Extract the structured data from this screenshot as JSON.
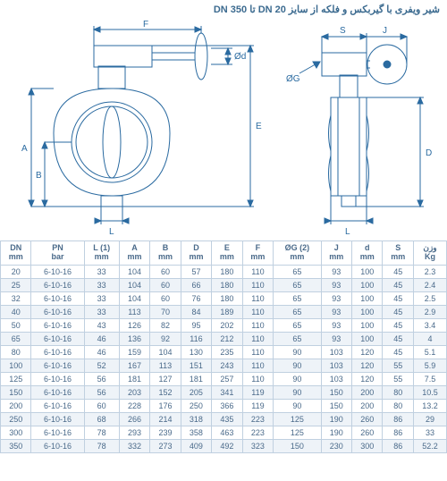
{
  "title": "شیر ویفری با گیربکس و فلکه از سایز DN 20 تا DN 350",
  "title_color": "#3b6a8f",
  "diagram": {
    "stroke": "#2a6aa0",
    "stroke_width": 1,
    "labels": [
      "F",
      "Ød",
      "E",
      "A",
      "B",
      "L",
      "S",
      "J",
      "ØG",
      "D"
    ]
  },
  "table": {
    "header_color": "#4a6a8a",
    "row_alt_color": "#eef3f8",
    "border_color": "#c0d0e0",
    "columns": [
      "DN\nmm",
      "PN\nbar",
      "L (1)\nmm",
      "A\nmm",
      "B\nmm",
      "D\nmm",
      "E\nmm",
      "F\nmm",
      "ØG (2)\nmm",
      "J\nmm",
      "d\nmm",
      "S\nmm",
      "وزن\nKg"
    ],
    "rows": [
      [
        "20",
        "6-10-16",
        "33",
        "104",
        "60",
        "57",
        "180",
        "110",
        "65",
        "93",
        "100",
        "45",
        "2.3"
      ],
      [
        "25",
        "6-10-16",
        "33",
        "104",
        "60",
        "66",
        "180",
        "110",
        "65",
        "93",
        "100",
        "45",
        "2.4"
      ],
      [
        "32",
        "6-10-16",
        "33",
        "104",
        "60",
        "76",
        "180",
        "110",
        "65",
        "93",
        "100",
        "45",
        "2.5"
      ],
      [
        "40",
        "6-10-16",
        "33",
        "113",
        "70",
        "84",
        "189",
        "110",
        "65",
        "93",
        "100",
        "45",
        "2.9"
      ],
      [
        "50",
        "6-10-16",
        "43",
        "126",
        "82",
        "95",
        "202",
        "110",
        "65",
        "93",
        "100",
        "45",
        "3.4"
      ],
      [
        "65",
        "6-10-16",
        "46",
        "136",
        "92",
        "116",
        "212",
        "110",
        "65",
        "93",
        "100",
        "45",
        "4"
      ],
      [
        "80",
        "6-10-16",
        "46",
        "159",
        "104",
        "130",
        "235",
        "110",
        "90",
        "103",
        "120",
        "45",
        "5.1"
      ],
      [
        "100",
        "6-10-16",
        "52",
        "167",
        "113",
        "151",
        "243",
        "110",
        "90",
        "103",
        "120",
        "55",
        "5.9"
      ],
      [
        "125",
        "6-10-16",
        "56",
        "181",
        "127",
        "181",
        "257",
        "110",
        "90",
        "103",
        "120",
        "55",
        "7.5"
      ],
      [
        "150",
        "6-10-16",
        "56",
        "203",
        "152",
        "205",
        "341",
        "119",
        "90",
        "150",
        "200",
        "80",
        "10.5"
      ],
      [
        "200",
        "6-10-16",
        "60",
        "228",
        "176",
        "250",
        "366",
        "119",
        "90",
        "150",
        "200",
        "80",
        "13.2"
      ],
      [
        "250",
        "6-10-16",
        "68",
        "266",
        "214",
        "318",
        "435",
        "223",
        "125",
        "190",
        "260",
        "86",
        "29"
      ],
      [
        "300",
        "6-10-16",
        "78",
        "293",
        "239",
        "358",
        "463",
        "223",
        "125",
        "190",
        "260",
        "86",
        "33"
      ],
      [
        "350",
        "6-10-16",
        "78",
        "332",
        "273",
        "409",
        "492",
        "323",
        "150",
        "230",
        "300",
        "86",
        "52.2"
      ]
    ]
  }
}
